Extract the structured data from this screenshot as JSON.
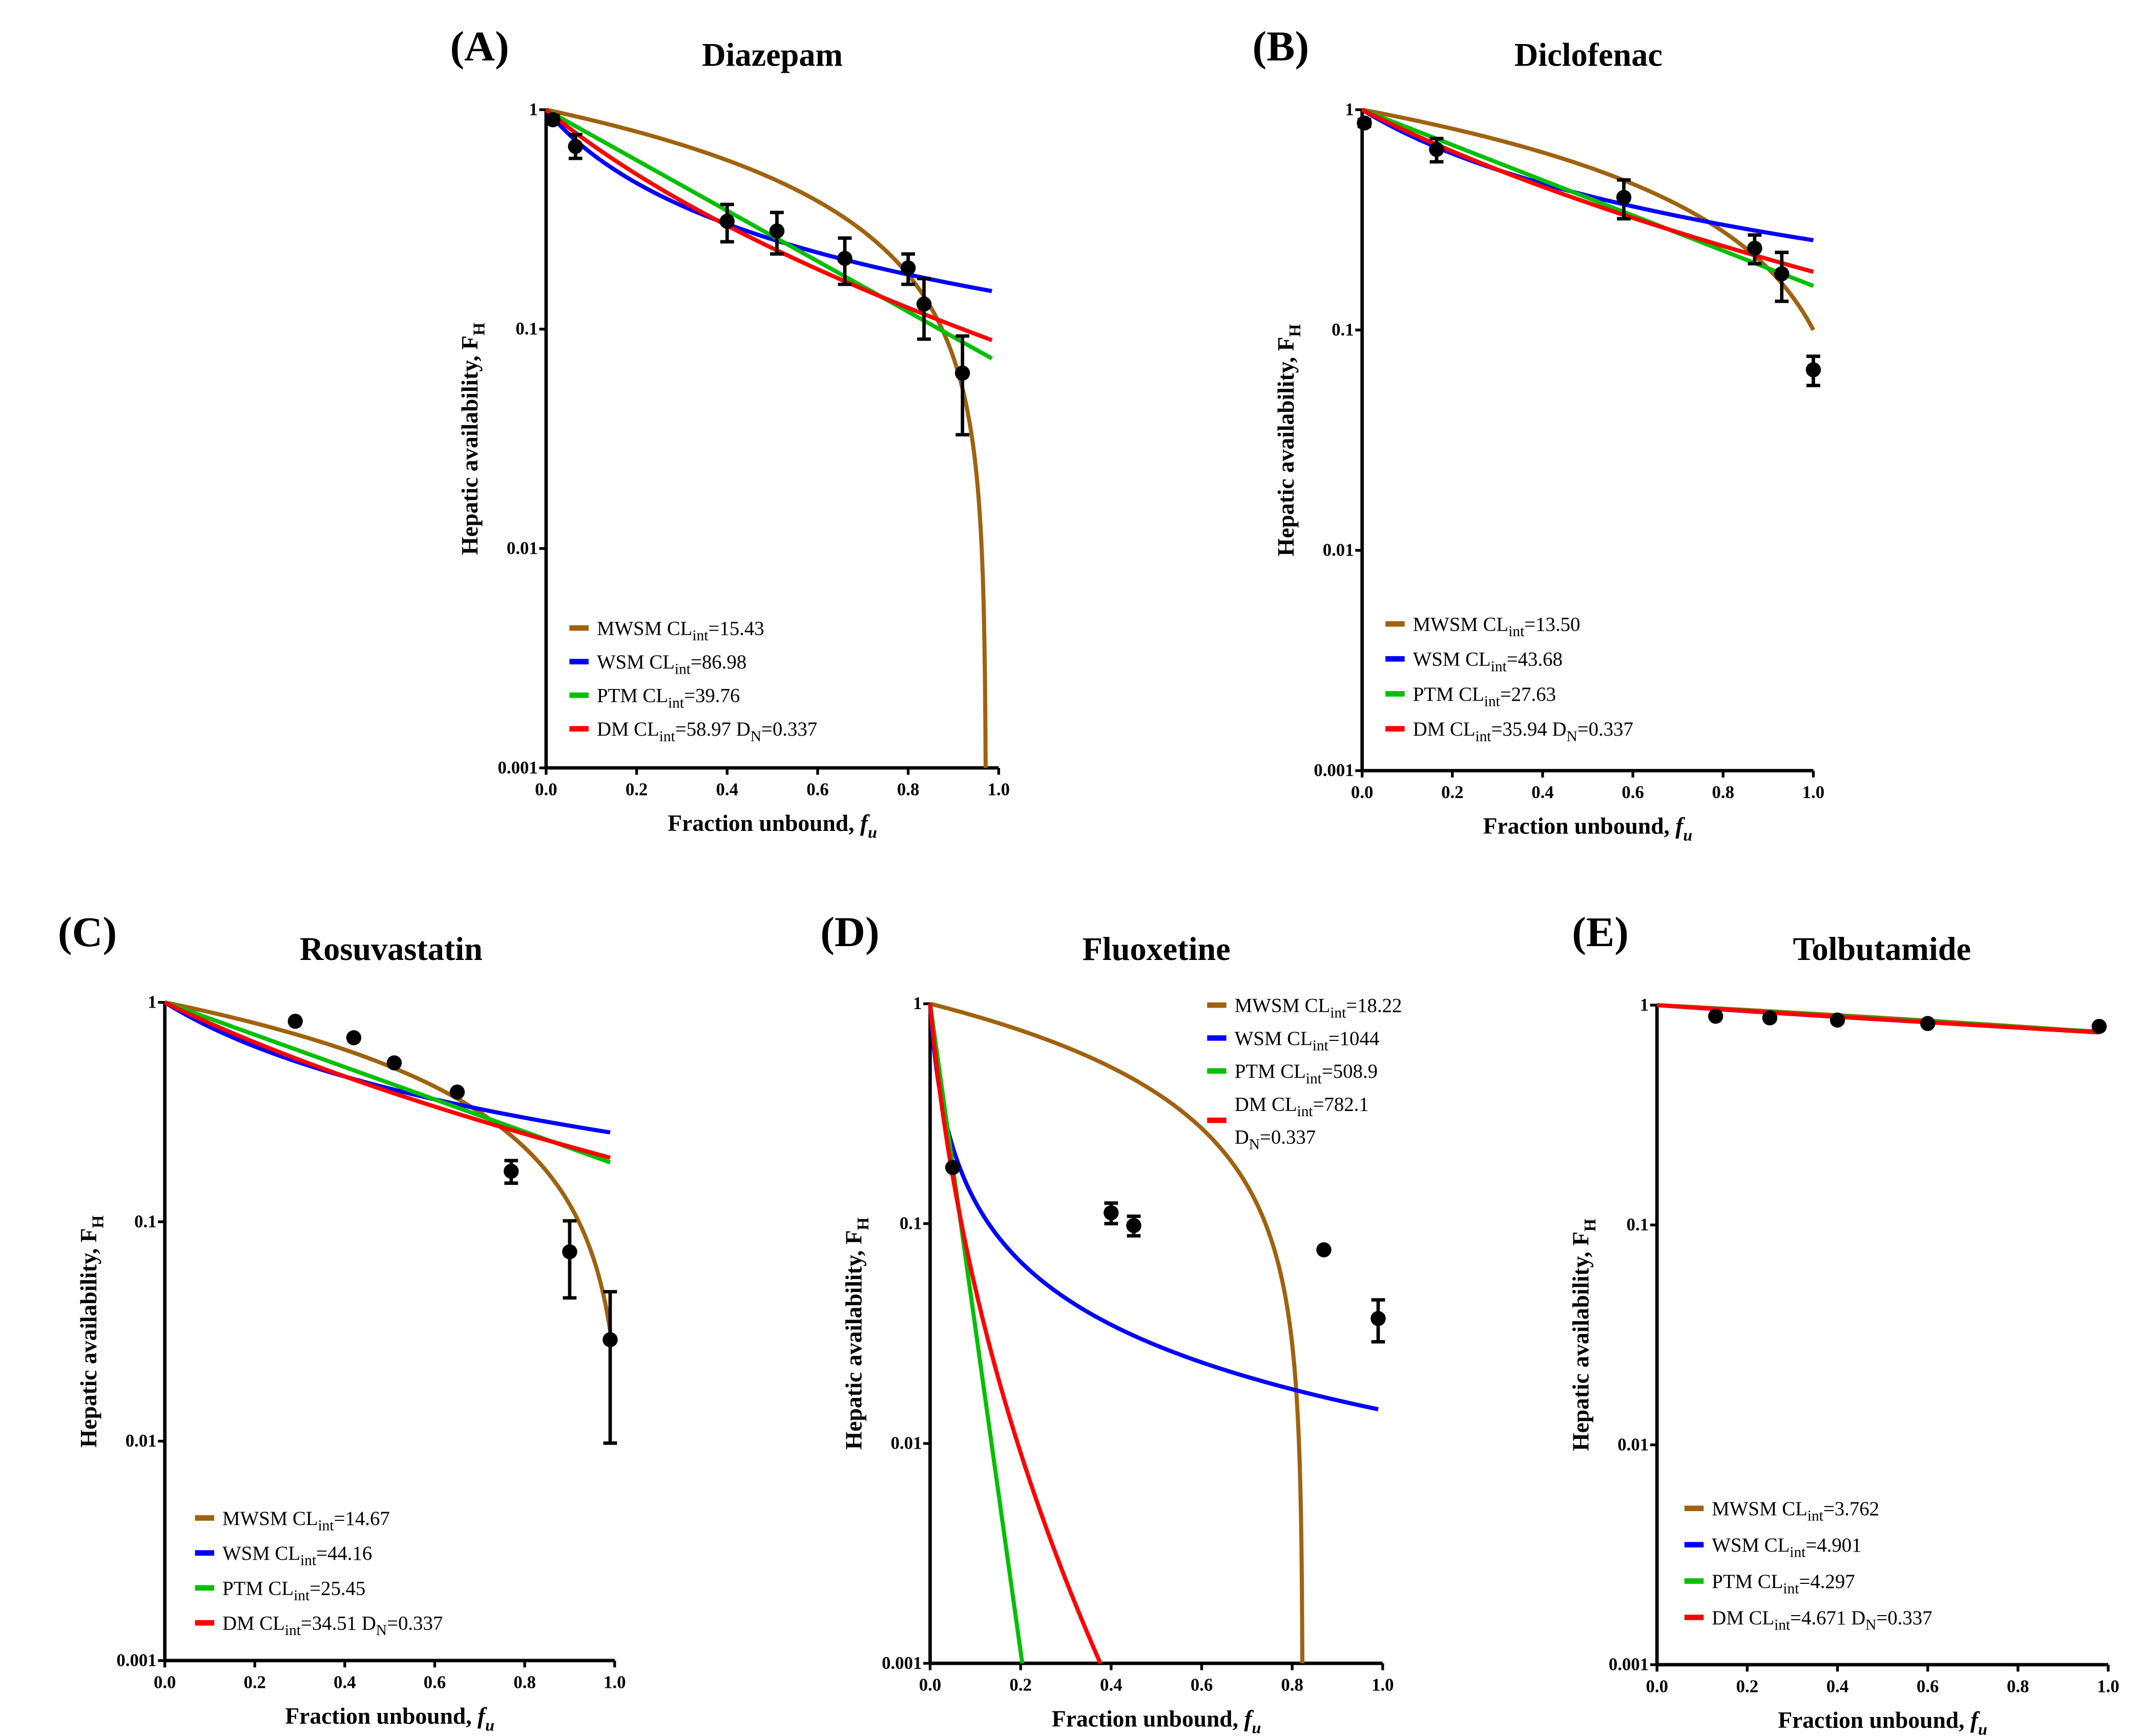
{
  "chart_data": {
    "type": "line",
    "common": {
      "xlabel": "Fraction unbound, ",
      "xlabel_var": "f",
      "xlabel_sub": "u",
      "ylabel": "Hepatic availability, F",
      "ylabel_sub": "H",
      "cl_prefix": "CL",
      "cl_sub": "int",
      "dn_prefix": "D",
      "dn_sub": "N",
      "xlim": [
        0,
        1
      ],
      "ylim": [
        0.001,
        1
      ],
      "yscale": "log",
      "xticks": [
        "0.0",
        "0.2",
        "0.4",
        "0.6",
        "0.8",
        "1.0"
      ],
      "yticks": [
        "0.001",
        "0.01",
        "0.1",
        "1"
      ],
      "colors": {
        "MWSM": "#a0620f",
        "WSM": "#0000ff",
        "PTM": "#00c000",
        "DM": "#ff0000"
      }
    },
    "panels": [
      {
        "label": "(A)",
        "title": "Diazepam",
        "fu_max": 0.985,
        "models": [
          {
            "name": "MWSM",
            "clint": "15.43"
          },
          {
            "name": "WSM",
            "clint": "86.98"
          },
          {
            "name": "PTM",
            "clint": "39.76"
          },
          {
            "name": "DM",
            "clint": "58.97",
            "dn": "0.337"
          }
        ],
        "legend_position": "bottom-left",
        "points": [
          {
            "x": 0.015,
            "y": 0.9,
            "err": [
              0.86,
              0.94
            ]
          },
          {
            "x": 0.065,
            "y": 0.68,
            "err": [
              0.6,
              0.77
            ]
          },
          {
            "x": 0.4,
            "y": 0.31,
            "err": [
              0.25,
              0.37
            ]
          },
          {
            "x": 0.51,
            "y": 0.28,
            "err": [
              0.22,
              0.34
            ]
          },
          {
            "x": 0.66,
            "y": 0.21,
            "err": [
              0.16,
              0.26
            ]
          },
          {
            "x": 0.8,
            "y": 0.19,
            "err": [
              0.16,
              0.22
            ]
          },
          {
            "x": 0.835,
            "y": 0.13,
            "err": [
              0.09,
              0.17
            ]
          },
          {
            "x": 0.92,
            "y": 0.063,
            "err": [
              0.033,
              0.093
            ]
          }
        ]
      },
      {
        "label": "(B)",
        "title": "Diclofenac",
        "fu_max": 1.0,
        "models": [
          {
            "name": "MWSM",
            "clint": "13.50"
          },
          {
            "name": "WSM",
            "clint": "43.68"
          },
          {
            "name": "PTM",
            "clint": "27.63"
          },
          {
            "name": "DM",
            "clint": "35.94",
            "dn": "0.337"
          }
        ],
        "legend_position": "bottom-left",
        "points": [
          {
            "x": 0.005,
            "y": 0.87,
            "err": [
              0.84,
              0.9
            ]
          },
          {
            "x": 0.165,
            "y": 0.66,
            "err": [
              0.58,
              0.74
            ]
          },
          {
            "x": 0.58,
            "y": 0.4,
            "err": [
              0.32,
              0.48
            ]
          },
          {
            "x": 0.87,
            "y": 0.235,
            "err": [
              0.2,
              0.27
            ]
          },
          {
            "x": 0.93,
            "y": 0.18,
            "err": [
              0.135,
              0.225
            ]
          },
          {
            "x": 1.0,
            "y": 0.066,
            "err": [
              0.056,
              0.076
            ]
          }
        ]
      },
      {
        "label": "(C)",
        "title": "Rosuvastatin",
        "fu_max": 0.99,
        "models": [
          {
            "name": "MWSM",
            "clint": "14.67"
          },
          {
            "name": "WSM",
            "clint": "44.16"
          },
          {
            "name": "PTM",
            "clint": "25.45"
          },
          {
            "name": "DM",
            "clint": "34.51",
            "dn": "0.337"
          }
        ],
        "legend_position": "bottom-left",
        "points": [
          {
            "x": 0.29,
            "y": 0.82
          },
          {
            "x": 0.42,
            "y": 0.69
          },
          {
            "x": 0.51,
            "y": 0.53
          },
          {
            "x": 0.65,
            "y": 0.39
          },
          {
            "x": 0.77,
            "y": 0.17,
            "err": [
              0.15,
              0.19
            ]
          },
          {
            "x": 0.9,
            "y": 0.073,
            "err": [
              0.045,
              0.101
            ]
          },
          {
            "x": 0.99,
            "y": 0.029,
            "err": [
              0.0098,
              0.048
            ]
          }
        ]
      },
      {
        "label": "(D)",
        "title": "Fluoxetine",
        "fu_max": 0.99,
        "models": [
          {
            "name": "MWSM",
            "clint": "18.22"
          },
          {
            "name": "WSM",
            "clint": "1044"
          },
          {
            "name": "PTM",
            "clint": "508.9"
          },
          {
            "name": "DM",
            "clint": "782.1",
            "dn": "0.337"
          }
        ],
        "legend_position": "top-right",
        "points": [
          {
            "x": 0.05,
            "y": 0.18
          },
          {
            "x": 0.4,
            "y": 0.112,
            "err": [
              0.1,
              0.124
            ]
          },
          {
            "x": 0.45,
            "y": 0.098,
            "err": [
              0.088,
              0.108
            ]
          },
          {
            "x": 0.87,
            "y": 0.076
          },
          {
            "x": 0.99,
            "y": 0.037,
            "err": [
              0.029,
              0.045
            ]
          }
        ]
      },
      {
        "label": "(E)",
        "title": "Tolbutamide",
        "fu_max": 0.98,
        "models": [
          {
            "name": "MWSM",
            "clint": "3.762"
          },
          {
            "name": "WSM",
            "clint": "4.901"
          },
          {
            "name": "PTM",
            "clint": "4.297"
          },
          {
            "name": "DM",
            "clint": "4.671",
            "dn": "0.337"
          }
        ],
        "legend_position": "bottom-left",
        "points": [
          {
            "x": 0.13,
            "y": 0.89
          },
          {
            "x": 0.25,
            "y": 0.875
          },
          {
            "x": 0.4,
            "y": 0.855
          },
          {
            "x": 0.6,
            "y": 0.825
          },
          {
            "x": 0.98,
            "y": 0.8
          }
        ]
      }
    ]
  }
}
